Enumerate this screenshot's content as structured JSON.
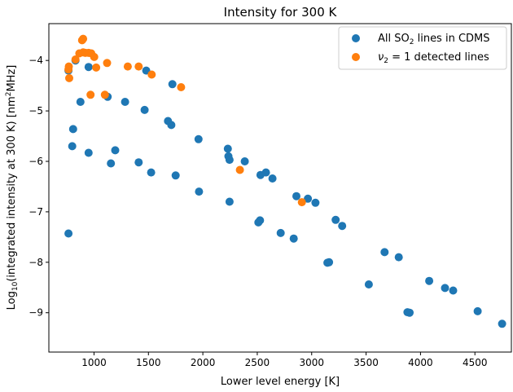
{
  "chart_data": {
    "type": "scatter",
    "title": "Intensity for 300 K",
    "xlabel": "Lower level energy [K]",
    "ylabel_parts": {
      "log": "Log",
      "log_sub": "10",
      "main": "(integrated intensity at 300 K) [nm",
      "unit_sup": "2",
      "unit_end": "MHz]"
    },
    "xlim": [
      585,
      4835
    ],
    "ylim": [
      -9.78,
      -3.27
    ],
    "xticks": [
      1000,
      1500,
      2000,
      2500,
      3000,
      3500,
      4000,
      4500
    ],
    "yticks": [
      -9,
      -8,
      -7,
      -6,
      -5,
      -4
    ],
    "xtick_labels": [
      "1000",
      "1500",
      "2000",
      "2500",
      "3000",
      "3500",
      "4000",
      "4500"
    ],
    "ytick_labels": [
      "−9",
      "−8",
      "−7",
      "−6",
      "−5",
      "−4"
    ],
    "grid": false,
    "legend_position": "top-right",
    "series": [
      {
        "legend_parts": {
          "pre": "All SO",
          "sub": "2",
          "post": " lines in CDMS"
        },
        "color": "#1f77b4",
        "points": [
          [
            765,
            -7.43
          ],
          [
            765,
            -4.2
          ],
          [
            800,
            -5.7
          ],
          [
            808,
            -5.36
          ],
          [
            830,
            -4.0
          ],
          [
            875,
            -4.82
          ],
          [
            950,
            -4.13
          ],
          [
            950,
            -5.83
          ],
          [
            1125,
            -4.72
          ],
          [
            1155,
            -6.04
          ],
          [
            1195,
            -5.78
          ],
          [
            1285,
            -4.82
          ],
          [
            1410,
            -6.02
          ],
          [
            1465,
            -4.98
          ],
          [
            1480,
            -4.2
          ],
          [
            1525,
            -6.22
          ],
          [
            1680,
            -5.2
          ],
          [
            1710,
            -5.28
          ],
          [
            1720,
            -4.47
          ],
          [
            1750,
            -6.28
          ],
          [
            1960,
            -5.56
          ],
          [
            1965,
            -6.6
          ],
          [
            2230,
            -5.75
          ],
          [
            2235,
            -5.9
          ],
          [
            2245,
            -5.97
          ],
          [
            2245,
            -6.8
          ],
          [
            2385,
            -6.0
          ],
          [
            2510,
            -7.21
          ],
          [
            2525,
            -7.17
          ],
          [
            2530,
            -6.27
          ],
          [
            2580,
            -6.22
          ],
          [
            2640,
            -6.34
          ],
          [
            2715,
            -7.42
          ],
          [
            2835,
            -7.53
          ],
          [
            2860,
            -6.69
          ],
          [
            2965,
            -6.74
          ],
          [
            3035,
            -6.82
          ],
          [
            3145,
            -8.01
          ],
          [
            3160,
            -8.0
          ],
          [
            3220,
            -7.16
          ],
          [
            3280,
            -7.28
          ],
          [
            3525,
            -8.44
          ],
          [
            3670,
            -7.8
          ],
          [
            3800,
            -7.9
          ],
          [
            3880,
            -8.99
          ],
          [
            3900,
            -9.0
          ],
          [
            4080,
            -8.37
          ],
          [
            4225,
            -8.51
          ],
          [
            4300,
            -8.56
          ],
          [
            4525,
            -8.97
          ],
          [
            4750,
            -9.22
          ]
        ]
      },
      {
        "legend_parts": {
          "pre": "ν",
          "sub": "2",
          "post": " = 1 detected lines"
        },
        "color": "#ff7f0e",
        "points": [
          [
            765,
            -4.18
          ],
          [
            768,
            -4.12
          ],
          [
            772,
            -4.35
          ],
          [
            830,
            -3.98
          ],
          [
            865,
            -3.86
          ],
          [
            890,
            -3.6
          ],
          [
            900,
            -3.57
          ],
          [
            900,
            -3.84
          ],
          [
            920,
            -3.85
          ],
          [
            950,
            -3.85
          ],
          [
            968,
            -4.68
          ],
          [
            975,
            -3.86
          ],
          [
            1002,
            -3.93
          ],
          [
            1020,
            -4.14
          ],
          [
            1100,
            -4.68
          ],
          [
            1120,
            -4.05
          ],
          [
            1310,
            -4.12
          ],
          [
            1410,
            -4.12
          ],
          [
            1530,
            -4.28
          ],
          [
            1800,
            -4.53
          ],
          [
            2340,
            -6.17
          ],
          [
            2910,
            -6.81
          ]
        ]
      }
    ]
  }
}
